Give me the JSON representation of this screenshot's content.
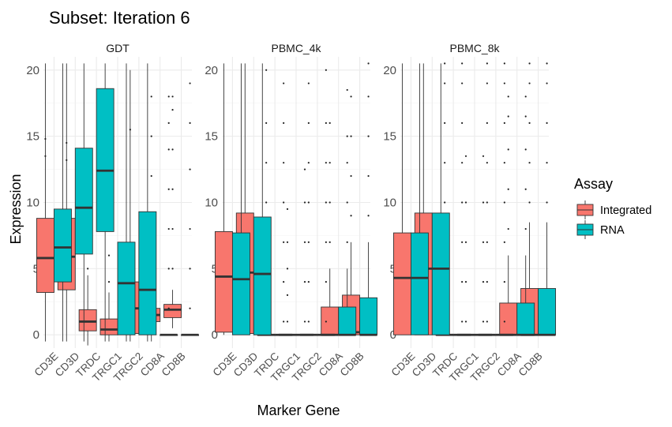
{
  "chart_data": {
    "type": "boxplot",
    "title": "Subset: Iteration 6",
    "xlabel": "Marker Gene",
    "ylabel": "Expression",
    "ylim": [
      -1,
      21
    ],
    "yticks": [
      0,
      5,
      10,
      15,
      20
    ],
    "grid": true,
    "legend": {
      "title": "Assay",
      "position": "right",
      "entries": [
        {
          "name": "Integrated",
          "color": "#F8766D"
        },
        {
          "name": "RNA",
          "color": "#00BFC4"
        }
      ]
    },
    "categories": [
      "CD3E",
      "CD3D",
      "TRDC",
      "TRGC1",
      "TRGC2",
      "CD8A",
      "CD8B"
    ],
    "panels": [
      {
        "name": "GDT",
        "series": [
          {
            "name": "Integrated",
            "boxes": [
              {
                "low": -0.5,
                "q1": 3.2,
                "median": 5.8,
                "q3": 8.8,
                "high": 20.5,
                "outliers": [
                  13.5,
                  14.8
                ]
              },
              {
                "low": -0.5,
                "q1": 3.4,
                "median": 5.9,
                "q3": 8.8,
                "high": 20.5,
                "outliers": [
                  13.2,
                  14.5
                ]
              },
              {
                "low": -0.8,
                "q1": 0.3,
                "median": 1.0,
                "q3": 1.9,
                "high": 4.5,
                "outliers": [
                  5,
                  7.5
                ]
              },
              {
                "low": -0.5,
                "q1": 0.0,
                "median": 0.4,
                "q3": 1.2,
                "high": 3.2,
                "outliers": [
                  4,
                  6
                ]
              },
              {
                "low": -0.5,
                "q1": 0.1,
                "median": 2.0,
                "q3": 4.0,
                "high": 20.0,
                "outliers": [
                  15.5
                ]
              },
              {
                "low": -0.5,
                "q1": 1.0,
                "median": 1.5,
                "q3": 2.0,
                "high": 3.0,
                "outliers": [
                  4,
                  7,
                  9,
                  12,
                  15,
                  18
                ]
              },
              {
                "low": 0.5,
                "q1": 1.3,
                "median": 1.9,
                "q3": 2.3,
                "high": 3.4,
                "outliers": [
                  5,
                  8,
                  11,
                  14,
                  17,
                  18
                ]
              }
            ]
          },
          {
            "name": "RNA",
            "boxes": [
              {
                "low": -0.5,
                "q1": 4.0,
                "median": 6.6,
                "q3": 9.5,
                "high": 20.5,
                "outliers": []
              },
              {
                "low": -0.5,
                "q1": 6.1,
                "median": 9.6,
                "q3": 14.1,
                "high": 20.5,
                "outliers": []
              },
              {
                "low": -0.5,
                "q1": 7.8,
                "median": 12.4,
                "q3": 18.6,
                "high": 20.5,
                "outliers": []
              },
              {
                "low": -0.5,
                "q1": 0.0,
                "median": 3.9,
                "q3": 7.0,
                "high": 20.5,
                "outliers": []
              },
              {
                "low": -0.5,
                "q1": 0.0,
                "median": 3.4,
                "q3": 9.3,
                "high": 20.5,
                "outliers": []
              },
              {
                "low": 0.0,
                "q1": 0.0,
                "median": 0.0,
                "q3": 0.0,
                "high": 0.0,
                "outliers": [
                  2,
                  5,
                  8,
                  11,
                  14,
                  16,
                  18
                ]
              },
              {
                "low": 0.0,
                "q1": 0.0,
                "median": 0.0,
                "q3": 0.0,
                "high": 0.0,
                "outliers": [
                  2,
                  5,
                  8,
                  12.5,
                  16,
                  19
                ]
              }
            ]
          }
        ]
      },
      {
        "name": "PBMC_4k",
        "series": [
          {
            "name": "Integrated",
            "boxes": [
              {
                "low": 0.0,
                "q1": 0.2,
                "median": 4.4,
                "q3": 7.8,
                "high": 20.5,
                "outliers": []
              },
              {
                "low": 0.0,
                "q1": 0.1,
                "median": 4.7,
                "q3": 9.2,
                "high": 20.5,
                "outliers": []
              },
              {
                "low": 0.0,
                "q1": 0.0,
                "median": 0.0,
                "q3": 0.0,
                "high": 0.0,
                "outliers": [
                  1,
                  4,
                  7,
                  10,
                  13,
                  16,
                  20
                ]
              },
              {
                "low": 0.0,
                "q1": 0.0,
                "median": 0.0,
                "q3": 0.0,
                "high": 0.0,
                "outliers": [
                  1,
                  3,
                  5,
                  7,
                  9.5
                ]
              },
              {
                "low": 0.0,
                "q1": 0.0,
                "median": 0.0,
                "q3": 0.0,
                "high": 0.0,
                "outliers": [
                  1,
                  4,
                  7,
                  10,
                  13,
                  16,
                  19
                ]
              },
              {
                "low": 0.0,
                "q1": 0.0,
                "median": 0.0,
                "q3": 2.1,
                "high": 5.0,
                "outliers": [
                  7,
                  10,
                  13,
                  16
                ]
              },
              {
                "low": 0.0,
                "q1": 0.0,
                "median": 0.2,
                "q3": 3.0,
                "high": 7.0,
                "outliers": [
                  9,
                  12,
                  15,
                  18
                ]
              }
            ]
          },
          {
            "name": "RNA",
            "boxes": [
              {
                "low": 0.0,
                "q1": 0.0,
                "median": 4.2,
                "q3": 7.7,
                "high": 20.5,
                "outliers": []
              },
              {
                "low": 0.0,
                "q1": 0.0,
                "median": 4.6,
                "q3": 8.9,
                "high": 20.5,
                "outliers": []
              },
              {
                "low": 0.0,
                "q1": 0.0,
                "median": 0.0,
                "q3": 0.0,
                "high": 0.0,
                "outliers": [
                  1,
                  4,
                  7,
                  10,
                  13,
                  16,
                  19
                ]
              },
              {
                "low": 0.0,
                "q1": 0.0,
                "median": 0.0,
                "q3": 0.0,
                "high": 0.0,
                "outliers": [
                  1,
                  4,
                  7,
                  10,
                  12.5
                ]
              },
              {
                "low": 0.0,
                "q1": 0.0,
                "median": 0.0,
                "q3": 0.0,
                "high": 0.0,
                "outliers": [
                  1,
                  4,
                  7,
                  10,
                  13,
                  16,
                  20
                ]
              },
              {
                "low": 0.0,
                "q1": 0.0,
                "median": 0.0,
                "q3": 2.1,
                "high": 5.0,
                "outliers": [
                  7,
                  10,
                  13,
                  15,
                  18.5
                ]
              },
              {
                "low": 0.0,
                "q1": 0.0,
                "median": 0.0,
                "q3": 2.8,
                "high": 7.0,
                "outliers": [
                  9,
                  12,
                  15,
                  18,
                  20.5
                ]
              }
            ]
          }
        ]
      },
      {
        "name": "PBMC_8k",
        "series": [
          {
            "name": "Integrated",
            "boxes": [
              {
                "low": 0.0,
                "q1": 0.0,
                "median": 4.3,
                "q3": 7.7,
                "high": 20.5,
                "outliers": []
              },
              {
                "low": 0.0,
                "q1": 0.0,
                "median": 5.0,
                "q3": 9.2,
                "high": 20.5,
                "outliers": []
              },
              {
                "low": 0.0,
                "q1": 0.0,
                "median": 0.0,
                "q3": 0.0,
                "high": 0.0,
                "outliers": [
                  1,
                  4,
                  7,
                  10,
                  13,
                  16,
                  19,
                  20.5
                ]
              },
              {
                "low": 0.0,
                "q1": 0.0,
                "median": 0.0,
                "q3": 0.0,
                "high": 0.0,
                "outliers": [
                  1,
                  4,
                  7,
                  10,
                  13.5
                ]
              },
              {
                "low": 0.0,
                "q1": 0.0,
                "median": 0.0,
                "q3": 0.0,
                "high": 0.0,
                "outliers": [
                  1,
                  4,
                  7,
                  10,
                  13,
                  16,
                  19,
                  20.5
                ]
              },
              {
                "low": 0.0,
                "q1": 0.0,
                "median": 0.0,
                "q3": 2.4,
                "high": 6.0,
                "outliers": [
                  8,
                  11,
                  14,
                  16.5,
                  18
                ]
              },
              {
                "low": 0.0,
                "q1": 0.0,
                "median": 0.0,
                "q3": 3.5,
                "high": 8.5,
                "outliers": [
                  10,
                  13,
                  16,
                  19,
                  20.5
                ]
              }
            ]
          },
          {
            "name": "RNA",
            "boxes": [
              {
                "low": 0.0,
                "q1": 0.0,
                "median": 4.3,
                "q3": 7.7,
                "high": 20.5,
                "outliers": []
              },
              {
                "low": 0.0,
                "q1": 0.0,
                "median": 5.0,
                "q3": 9.2,
                "high": 20.5,
                "outliers": []
              },
              {
                "low": 0.0,
                "q1": 0.0,
                "median": 0.0,
                "q3": 0.0,
                "high": 0.0,
                "outliers": [
                  1,
                  4,
                  7,
                  10,
                  13,
                  16,
                  19,
                  20.5
                ]
              },
              {
                "low": 0.0,
                "q1": 0.0,
                "median": 0.0,
                "q3": 0.0,
                "high": 0.0,
                "outliers": [
                  1,
                  4,
                  7,
                  10,
                  13.5
                ]
              },
              {
                "low": 0.0,
                "q1": 0.0,
                "median": 0.0,
                "q3": 0.0,
                "high": 0.0,
                "outliers": [
                  1,
                  4,
                  7,
                  10,
                  13,
                  16,
                  19,
                  20.5
                ]
              },
              {
                "low": 0.0,
                "q1": 0.0,
                "median": 0.0,
                "q3": 2.4,
                "high": 6.0,
                "outliers": [
                  8,
                  11,
                  14,
                  16.5,
                  18
                ]
              },
              {
                "low": 0.0,
                "q1": 0.0,
                "median": 0.0,
                "q3": 3.5,
                "high": 8.5,
                "outliers": [
                  10,
                  13,
                  16,
                  19,
                  20.5
                ]
              }
            ]
          }
        ]
      }
    ]
  }
}
